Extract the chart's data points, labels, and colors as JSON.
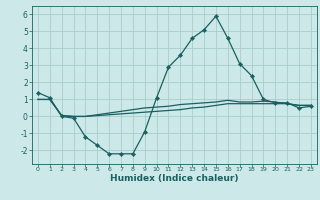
{
  "xlabel": "Humidex (Indice chaleur)",
  "bg_color": "#cce8e8",
  "grid_color": "#a8cccc",
  "line_color": "#1a6060",
  "xlim": [
    -0.5,
    23.5
  ],
  "ylim": [
    -2.8,
    6.5
  ],
  "xticks": [
    0,
    1,
    2,
    3,
    4,
    5,
    6,
    7,
    8,
    9,
    10,
    11,
    12,
    13,
    14,
    15,
    16,
    17,
    18,
    19,
    20,
    21,
    22,
    23
  ],
  "yticks": [
    -2,
    -1,
    0,
    1,
    2,
    3,
    4,
    5,
    6
  ],
  "line1_x": [
    0,
    1,
    2,
    3,
    4,
    5,
    6,
    7,
    8,
    9,
    10,
    11,
    12,
    13,
    14,
    15,
    16,
    17,
    18,
    19,
    20,
    21,
    22,
    23
  ],
  "line1_y": [
    1.4,
    1.1,
    0.0,
    -0.1,
    -1.2,
    -1.7,
    -2.2,
    -2.2,
    -2.2,
    -0.9,
    1.1,
    2.9,
    3.6,
    4.6,
    5.1,
    5.9,
    4.6,
    3.1,
    2.4,
    1.0,
    0.8,
    0.8,
    0.5,
    0.6
  ],
  "line2_x": [
    0,
    1,
    2,
    3,
    4,
    5,
    6,
    7,
    8,
    9,
    10,
    11,
    12,
    13,
    14,
    15,
    16,
    17,
    18,
    19,
    20,
    21,
    22,
    23
  ],
  "line2_y": [
    1.0,
    1.0,
    0.05,
    0.0,
    0.0,
    0.05,
    0.1,
    0.15,
    0.2,
    0.25,
    0.3,
    0.35,
    0.4,
    0.5,
    0.55,
    0.65,
    0.75,
    0.75,
    0.75,
    0.75,
    0.75,
    0.75,
    0.65,
    0.65
  ],
  "line3_x": [
    0,
    1,
    2,
    3,
    4,
    5,
    6,
    7,
    8,
    9,
    10,
    11,
    12,
    13,
    14,
    15,
    16,
    17,
    18,
    19,
    20,
    21,
    22,
    23
  ],
  "line3_y": [
    1.0,
    1.0,
    0.05,
    0.0,
    0.0,
    0.1,
    0.2,
    0.3,
    0.4,
    0.5,
    0.55,
    0.6,
    0.7,
    0.75,
    0.8,
    0.85,
    0.95,
    0.85,
    0.85,
    0.9,
    0.85,
    0.75,
    0.65,
    0.65
  ]
}
